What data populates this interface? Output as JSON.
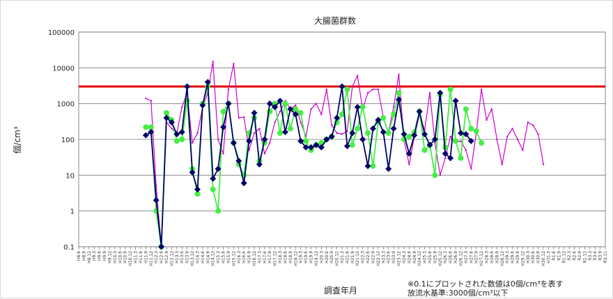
{
  "chart_data": {
    "type": "line",
    "title": "大腸菌群数",
    "ylabel": "個/cm³",
    "xlabel": "調査年月",
    "yscale": "log",
    "ylim": [
      0.1,
      100000
    ],
    "yticks": [
      "0.1",
      "1",
      "10",
      "100",
      "1000",
      "10000",
      "100000"
    ],
    "grid": "horizontal",
    "reference_line": {
      "value": 3000,
      "color": "#e00000"
    },
    "notes": [
      "※0.1にプロットされた数値は0個/cm³を表す",
      "放流水基準:3000個/cm³以下"
    ],
    "categories": [
      "H8.6",
      "H8.9",
      "H8.12",
      "H9.3",
      "H9.6",
      "H9.9",
      "H9.12",
      "H10.3",
      "H10.6",
      "H10.9",
      "H10.12",
      "H11.3",
      "H11.6",
      "H11.9",
      "H11.12",
      "H12.3",
      "H12.6",
      "H12.9",
      "H12.12",
      "H13.3",
      "H13.6",
      "H13.9",
      "H13.12",
      "H14.3",
      "H14.6",
      "H14.9",
      "H14.12",
      "H15.3",
      "H15.6",
      "H15.9",
      "H15.12",
      "H16.3",
      "H16.6",
      "H16.9",
      "H16.12",
      "H17.3",
      "H17.6",
      "H17.9",
      "H17.12",
      "H18.3",
      "H18.6",
      "H18.9",
      "H18.12",
      "H19.3",
      "H19.6",
      "H19.9",
      "H19.12",
      "H20.3",
      "H20.6",
      "H20.9",
      "H20.12",
      "H21.3",
      "H21.6",
      "H21.9",
      "H21.12",
      "H22.3",
      "H22.6",
      "H22.9",
      "H22.12",
      "H23.3",
      "H23.6",
      "H23.9",
      "H23.12",
      "H24.3",
      "H24.6",
      "H24.9",
      "H24.12",
      "H25.3",
      "H25.6",
      "H25.9",
      "H25.12",
      "H26.3",
      "H26.6",
      "H26.9",
      "H26.12",
      "H27.3",
      "H27.6",
      "H27.9",
      "H27.12",
      "H28.3",
      "H28.6",
      "H28.9",
      "H28.12",
      "H29.3",
      "H29.6",
      "H29.9",
      "H29.12",
      "H30.3",
      "H30.6",
      "H30.9",
      "H30.12",
      "H31.3",
      "R1.6",
      "R1.9",
      "R1.12",
      "R2.3",
      "R2.6",
      "R2.9",
      "R2.12",
      "R3.3",
      "R3.6",
      "R3.9",
      "R3.11"
    ],
    "series": [
      {
        "name": "",
        "color": "#cc00cc",
        "marker": "none",
        "values": [
          null,
          null,
          null,
          null,
          null,
          null,
          null,
          null,
          null,
          null,
          null,
          null,
          null,
          1400,
          1200,
          5,
          0.1,
          300,
          200,
          150,
          800,
          2000,
          80,
          150,
          800,
          2000,
          15000,
          100,
          40,
          2500,
          13000,
          400,
          420,
          50,
          150,
          200,
          40,
          80,
          300,
          600,
          1200,
          700,
          900,
          300,
          120,
          700,
          1000,
          500,
          2500,
          250,
          150,
          140,
          170,
          3000,
          6000,
          700,
          2000,
          2500,
          2500,
          400,
          160,
          800,
          6500,
          100,
          20,
          120,
          500,
          180,
          2000,
          80,
          10,
          30,
          120,
          80,
          90,
          50,
          15,
          150,
          2500,
          350,
          700,
          100,
          20,
          120,
          200,
          100,
          50,
          300,
          250,
          140,
          20,
          null,
          null,
          null,
          null,
          null,
          null,
          null,
          null,
          null,
          null,
          null,
          null
        ]
      },
      {
        "name": "",
        "color": "#44ee44",
        "marker": "circle",
        "values": [
          null,
          null,
          null,
          null,
          null,
          null,
          null,
          null,
          null,
          null,
          null,
          null,
          null,
          220,
          220,
          1,
          0.1,
          550,
          350,
          90,
          100,
          1200,
          15,
          3,
          1000,
          3000,
          4,
          1,
          600,
          1000,
          80,
          20,
          10,
          150,
          400,
          25,
          80,
          600,
          1000,
          150,
          1000,
          200,
          700,
          550,
          90,
          50,
          70,
          80,
          100,
          120,
          300,
          500,
          2500,
          70,
          200,
          800,
          150,
          18,
          300,
          400,
          150,
          500,
          2000,
          100,
          120,
          160,
          600,
          50,
          70,
          10,
          1800,
          60,
          2500,
          90,
          30,
          700,
          200,
          170,
          80,
          null,
          null,
          null,
          null,
          null,
          null,
          null,
          null,
          null,
          null,
          null,
          null,
          null,
          null,
          null,
          null,
          null,
          null,
          null,
          null,
          null,
          null,
          null,
          null
        ]
      },
      {
        "name": "",
        "color": "#000066",
        "marker": "diamond",
        "values": [
          null,
          null,
          null,
          null,
          null,
          null,
          null,
          null,
          null,
          null,
          null,
          null,
          null,
          130,
          160,
          2,
          0.1,
          400,
          300,
          140,
          160,
          3000,
          12,
          4,
          900,
          4000,
          8,
          15,
          220,
          1000,
          80,
          25,
          6,
          90,
          550,
          20,
          100,
          1000,
          800,
          1200,
          160,
          700,
          500,
          90,
          60,
          60,
          70,
          60,
          100,
          120,
          400,
          3000,
          65,
          150,
          800,
          100,
          18,
          200,
          350,
          160,
          15,
          200,
          1300,
          140,
          40,
          130,
          600,
          140,
          70,
          100,
          2000,
          40,
          30,
          1200,
          150,
          140,
          90,
          null,
          null,
          null,
          null,
          null,
          null,
          null,
          null,
          null,
          null,
          null,
          null,
          null,
          null,
          null,
          null,
          null,
          null,
          null,
          null,
          null,
          null,
          null,
          null,
          null,
          null
        ]
      }
    ]
  }
}
